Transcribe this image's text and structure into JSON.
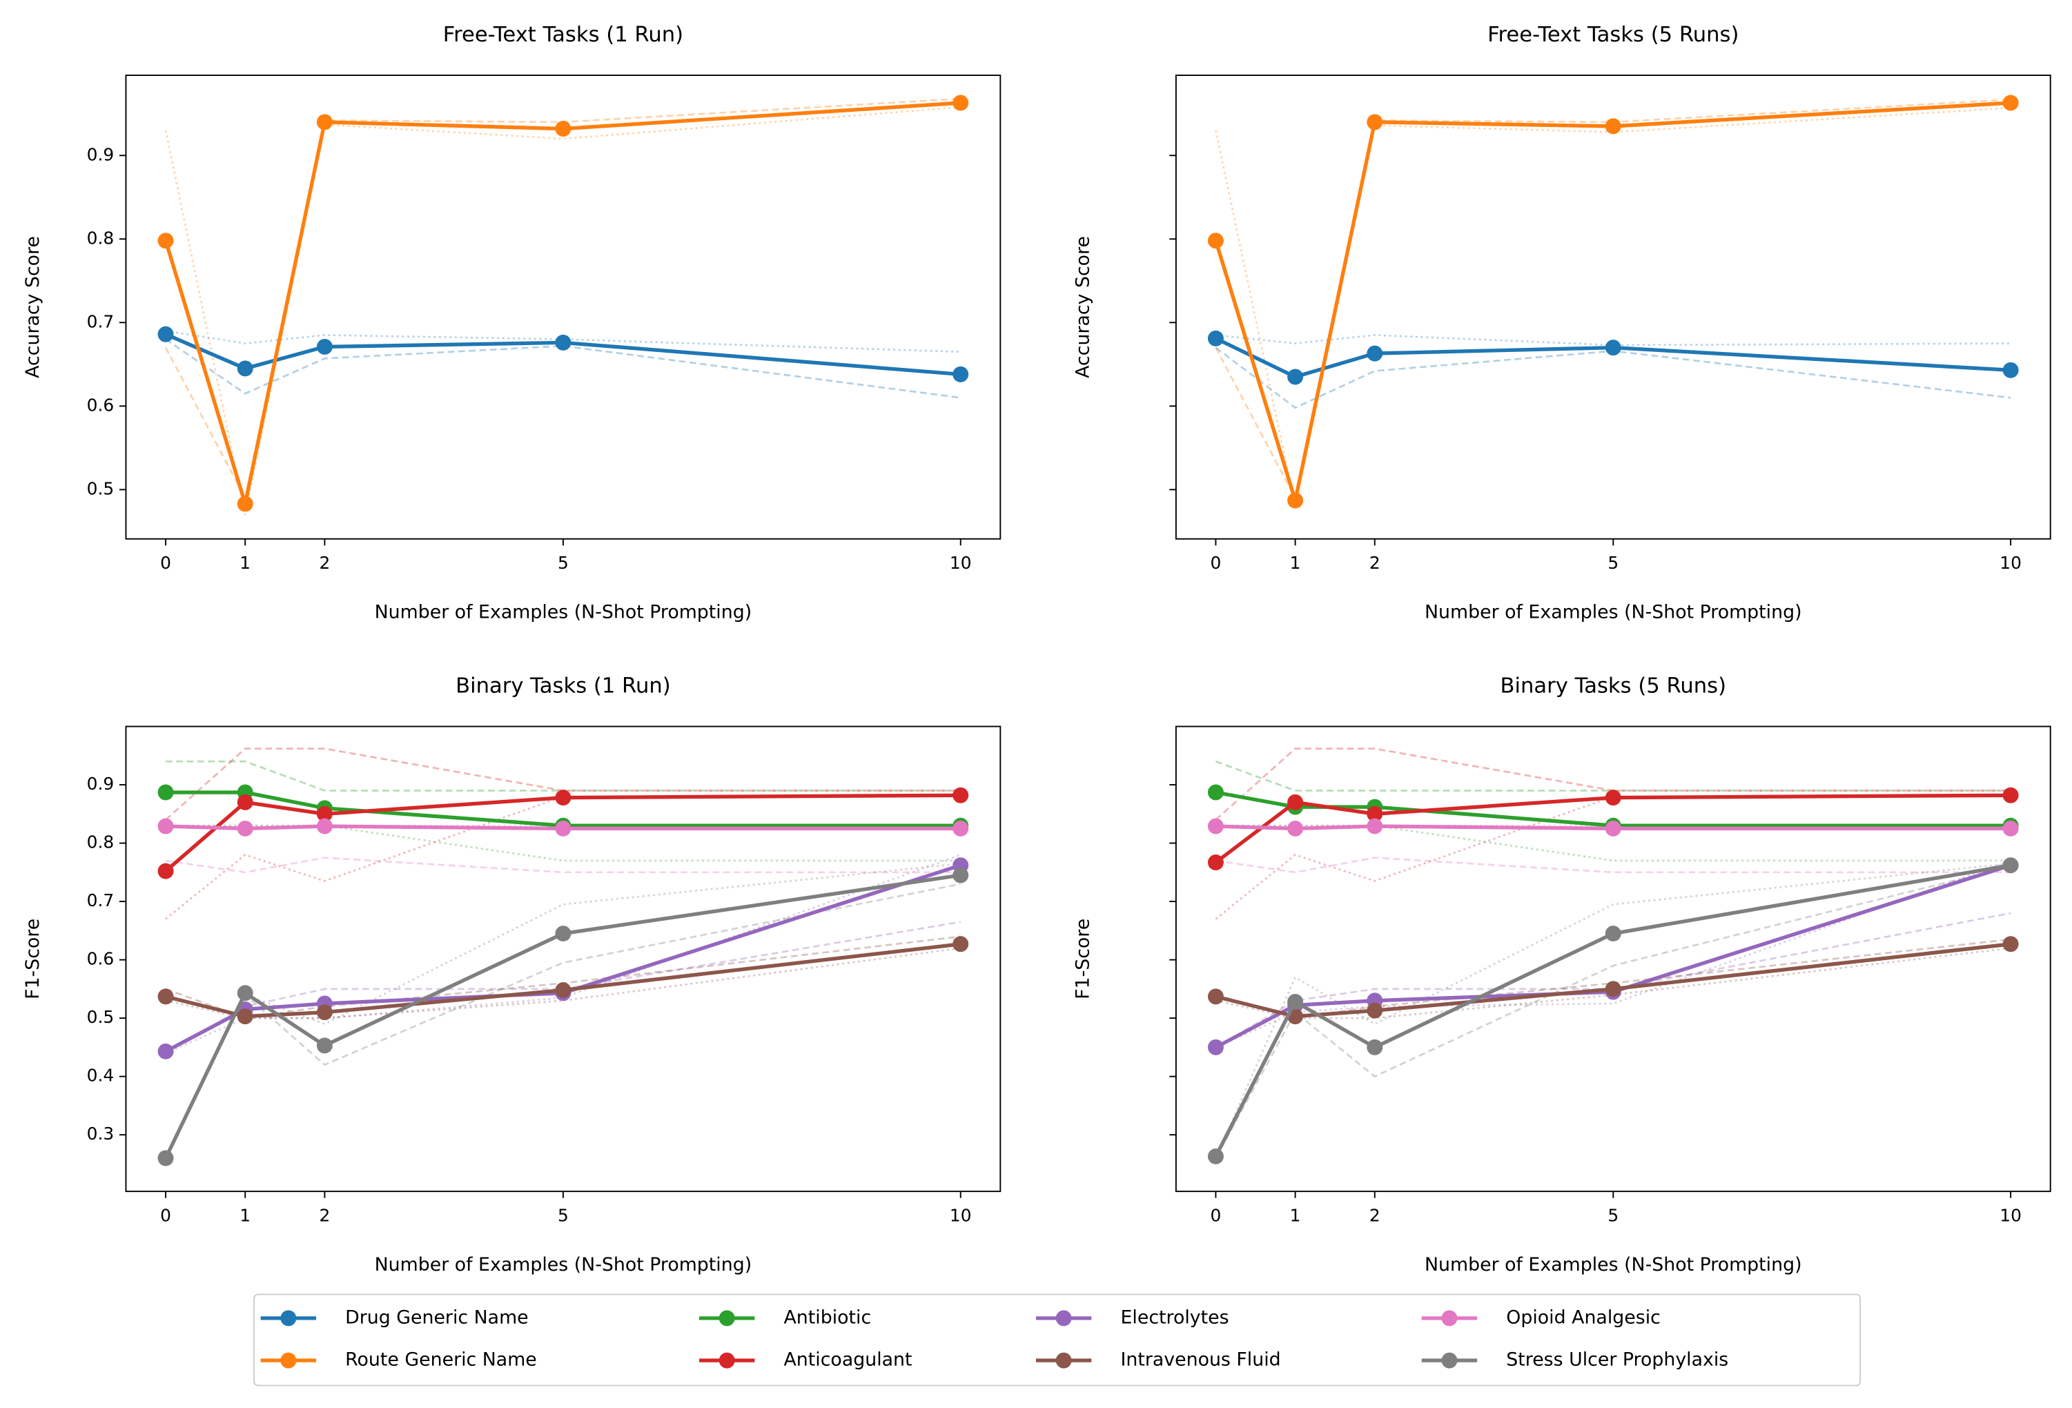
{
  "chart_data": [
    {
      "type": "line",
      "title": "Free-Text Tasks (1 Run)",
      "xlabel": "Number of Examples (N-Shot Prompting)",
      "ylabel": "Accuracy Score",
      "x": [
        0,
        1,
        2,
        5,
        10
      ],
      "xlim": [
        -0.5,
        10.5
      ],
      "xticks": [
        0,
        1,
        2,
        5,
        10
      ],
      "ylim": [
        0.441,
        0.996
      ],
      "yticks": [
        0.5,
        0.6,
        0.7,
        0.8,
        0.9
      ],
      "ytick_labels": true,
      "series": [
        {
          "name": "Drug Generic Name",
          "color": "#1f77b4",
          "values": [
            0.686,
            0.645,
            0.671,
            0.676,
            0.638
          ],
          "dashed": [
            0.68,
            0.615,
            0.657,
            0.672,
            0.61
          ],
          "dotted": [
            0.69,
            0.675,
            0.685,
            0.68,
            0.665
          ]
        },
        {
          "name": "Route Generic Name",
          "color": "#ff7f0e",
          "values": [
            0.798,
            0.483,
            0.94,
            0.932,
            0.963
          ],
          "dashed": [
            0.67,
            0.49,
            0.942,
            0.94,
            0.968
          ],
          "dotted": [
            0.93,
            0.47,
            0.937,
            0.92,
            0.958
          ]
        }
      ]
    },
    {
      "type": "line",
      "title": "Free-Text Tasks (5 Runs)",
      "xlabel": "Number of Examples (N-Shot Prompting)",
      "ylabel": "Accuracy Score",
      "x": [
        0,
        1,
        2,
        5,
        10
      ],
      "xlim": [
        -0.5,
        10.5
      ],
      "xticks": [
        0,
        1,
        2,
        5,
        10
      ],
      "ylim": [
        0.441,
        0.996
      ],
      "yticks": [
        0.5,
        0.6,
        0.7,
        0.8,
        0.9
      ],
      "ytick_labels": false,
      "series": [
        {
          "name": "Drug Generic Name",
          "color": "#1f77b4",
          "values": [
            0.681,
            0.635,
            0.663,
            0.67,
            0.643
          ],
          "dashed": [
            0.67,
            0.598,
            0.642,
            0.666,
            0.61
          ],
          "dotted": [
            0.685,
            0.675,
            0.685,
            0.673,
            0.675
          ]
        },
        {
          "name": "Route Generic Name",
          "color": "#ff7f0e",
          "values": [
            0.798,
            0.487,
            0.94,
            0.935,
            0.963
          ],
          "dashed": [
            0.67,
            0.49,
            0.942,
            0.94,
            0.967
          ],
          "dotted": [
            0.93,
            0.48,
            0.936,
            0.928,
            0.957
          ]
        }
      ]
    },
    {
      "type": "line",
      "title": "Binary Tasks (1 Run)",
      "xlabel": "Number of Examples (N-Shot Prompting)",
      "ylabel": "F1-Score",
      "x": [
        0,
        1,
        2,
        5,
        10
      ],
      "xlim": [
        -0.5,
        10.5
      ],
      "xticks": [
        0,
        1,
        2,
        5,
        10
      ],
      "ylim": [
        0.203,
        1.0
      ],
      "yticks": [
        0.3,
        0.4,
        0.5,
        0.6,
        0.7,
        0.8,
        0.9
      ],
      "ytick_labels": true,
      "series": [
        {
          "name": "Antibiotic",
          "color": "#2ca02c",
          "values": [
            0.887,
            0.887,
            0.86,
            0.83,
            0.83
          ],
          "dashed": [
            0.94,
            0.94,
            0.89,
            0.89,
            0.89
          ],
          "dotted": [
            0.83,
            0.83,
            0.83,
            0.77,
            0.77
          ]
        },
        {
          "name": "Anticoagulant",
          "color": "#d62728",
          "values": [
            0.752,
            0.87,
            0.85,
            0.878,
            0.882
          ],
          "dashed": [
            0.84,
            0.962,
            0.962,
            0.89,
            0.89
          ],
          "dotted": [
            0.67,
            0.78,
            0.735,
            0.88,
            0.88
          ]
        },
        {
          "name": "Electrolytes",
          "color": "#9467bd",
          "values": [
            0.443,
            0.515,
            0.525,
            0.543,
            0.762
          ],
          "dashed": [
            0.44,
            0.52,
            0.55,
            0.55,
            0.665
          ],
          "dotted": [
            0.44,
            0.5,
            0.5,
            0.535,
            0.78
          ]
        },
        {
          "name": "Intravenous Fluid",
          "color": "#8c564b",
          "values": [
            0.537,
            0.503,
            0.51,
            0.548,
            0.627
          ],
          "dashed": [
            0.55,
            0.5,
            0.52,
            0.56,
            0.64
          ],
          "dotted": [
            0.53,
            0.5,
            0.5,
            0.53,
            0.62
          ]
        },
        {
          "name": "Opioid Analgesic",
          "color": "#e377c2",
          "values": [
            0.829,
            0.825,
            0.829,
            0.825,
            0.825
          ],
          "dashed": [
            0.77,
            0.75,
            0.775,
            0.75,
            0.75
          ],
          "dotted": [
            0.83,
            0.83,
            0.83,
            0.83,
            0.83
          ]
        },
        {
          "name": "Stress Ulcer Prophylaxis",
          "color": "#7f7f7f",
          "values": [
            0.26,
            0.543,
            0.453,
            0.645,
            0.745
          ],
          "dashed": [
            0.26,
            0.54,
            0.42,
            0.595,
            0.73
          ],
          "dotted": [
            0.26,
            0.54,
            0.49,
            0.695,
            0.765
          ]
        }
      ]
    },
    {
      "type": "line",
      "title": "Binary Tasks (5 Runs)",
      "xlabel": "Number of Examples (N-Shot Prompting)",
      "ylabel": "F1-Score",
      "x": [
        0,
        1,
        2,
        5,
        10
      ],
      "xlim": [
        -0.5,
        10.5
      ],
      "xticks": [
        0,
        1,
        2,
        5,
        10
      ],
      "ylim": [
        0.203,
        1.0
      ],
      "yticks": [
        0.3,
        0.4,
        0.5,
        0.6,
        0.7,
        0.8,
        0.9
      ],
      "ytick_labels": false,
      "series": [
        {
          "name": "Antibiotic",
          "color": "#2ca02c",
          "values": [
            0.887,
            0.862,
            0.862,
            0.83,
            0.83
          ],
          "dashed": [
            0.94,
            0.89,
            0.89,
            0.89,
            0.89
          ],
          "dotted": [
            0.83,
            0.83,
            0.83,
            0.77,
            0.77
          ]
        },
        {
          "name": "Anticoagulant",
          "color": "#d62728",
          "values": [
            0.767,
            0.87,
            0.85,
            0.878,
            0.882
          ],
          "dashed": [
            0.84,
            0.962,
            0.962,
            0.89,
            0.89
          ],
          "dotted": [
            0.67,
            0.78,
            0.735,
            0.88,
            0.88
          ]
        },
        {
          "name": "Electrolytes",
          "color": "#9467bd",
          "values": [
            0.45,
            0.522,
            0.53,
            0.545,
            0.762
          ],
          "dashed": [
            0.45,
            0.53,
            0.55,
            0.55,
            0.68
          ],
          "dotted": [
            0.45,
            0.51,
            0.52,
            0.525,
            0.77
          ]
        },
        {
          "name": "Intravenous Fluid",
          "color": "#8c564b",
          "values": [
            0.537,
            0.503,
            0.513,
            0.55,
            0.627
          ],
          "dashed": [
            0.54,
            0.5,
            0.52,
            0.56,
            0.635
          ],
          "dotted": [
            0.53,
            0.5,
            0.5,
            0.54,
            0.62
          ]
        },
        {
          "name": "Opioid Analgesic",
          "color": "#e377c2",
          "values": [
            0.829,
            0.825,
            0.829,
            0.825,
            0.825
          ],
          "dashed": [
            0.77,
            0.75,
            0.775,
            0.75,
            0.75
          ],
          "dotted": [
            0.83,
            0.83,
            0.83,
            0.83,
            0.83
          ]
        },
        {
          "name": "Stress Ulcer Prophylaxis",
          "color": "#7f7f7f",
          "values": [
            0.263,
            0.528,
            0.45,
            0.645,
            0.762
          ],
          "dashed": [
            0.26,
            0.51,
            0.4,
            0.59,
            0.76
          ],
          "dotted": [
            0.26,
            0.57,
            0.49,
            0.695,
            0.765
          ]
        }
      ]
    }
  ]
}
